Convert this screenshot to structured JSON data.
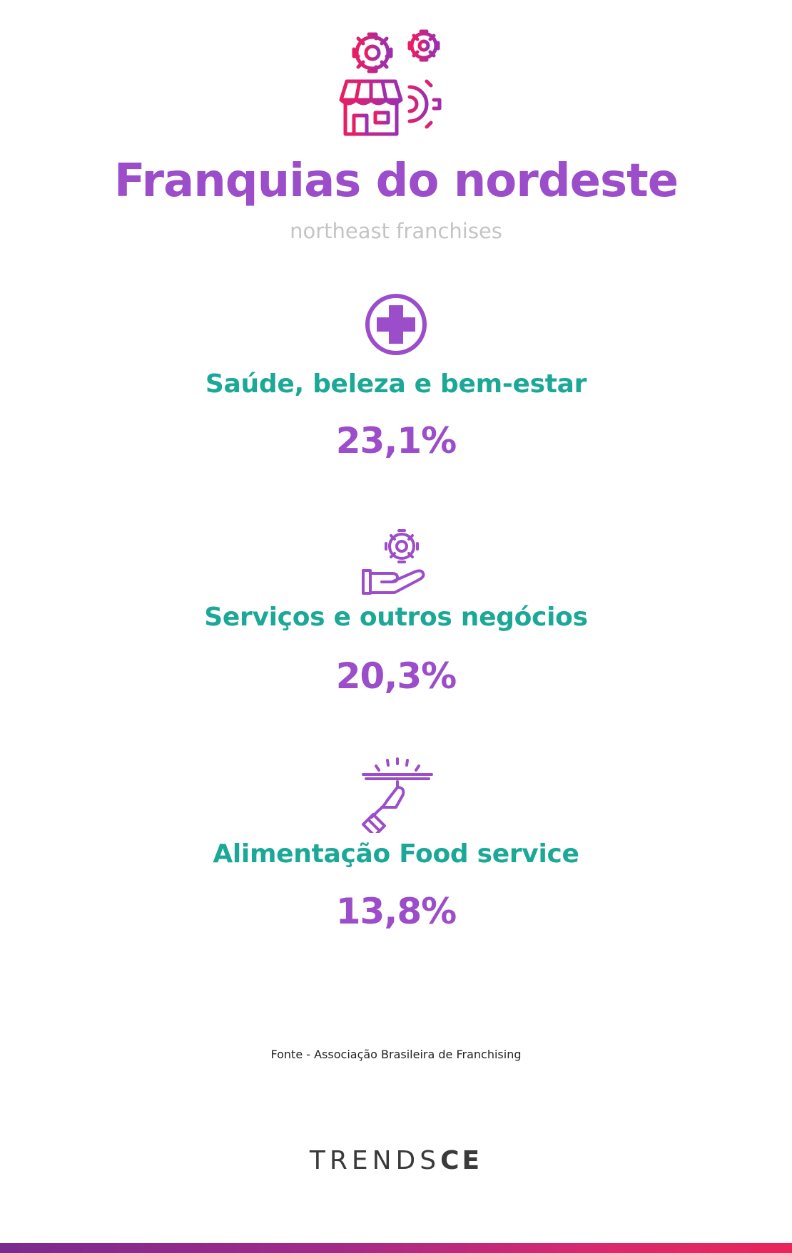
{
  "header": {
    "icon": "store-gears-icon",
    "title": "Franquias do nordeste",
    "subtitle": "northeast franchises"
  },
  "categories": [
    {
      "icon": "medical-cross-icon",
      "label": "Saúde, beleza e bem-estar",
      "value": "23,1%"
    },
    {
      "icon": "hand-gear-icon",
      "label": "Serviços e outros negócios",
      "value": "20,3%"
    },
    {
      "icon": "serving-tray-icon",
      "label": "Alimentação Food service",
      "value": "13,8%"
    }
  ],
  "source": "Fonte - Associação Brasileira de Franchising",
  "brand": {
    "light": "TRENDS",
    "bold": "CE"
  },
  "colors": {
    "purple": "#9b4dca",
    "teal": "#1ba897",
    "gradient_start": "#7b2a8f",
    "gradient_end": "#e8265a"
  }
}
